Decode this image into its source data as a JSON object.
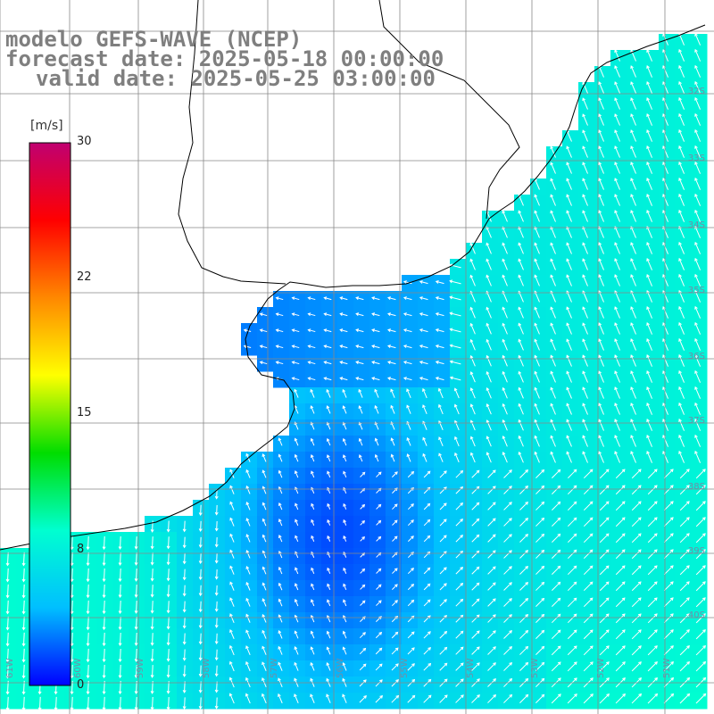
{
  "title": {
    "model": "modelo GEFS-WAVE (NCEP)",
    "forecast": "forecast date: 2025-05-18 00:00:00",
    "valid": "valid date: 2025-05-25 03:00:00"
  },
  "colorbar": {
    "unit": "[m/s]",
    "ticks": [
      "30",
      "22",
      "15",
      "8",
      "0"
    ],
    "colors": [
      "#0000ff",
      "#00bfff",
      "#00ffd0",
      "#00dd00",
      "#ffff00",
      "#ff8800",
      "#ff0000",
      "#c00070"
    ]
  },
  "map": {
    "field": "wind speed and direction",
    "longitude_labels": [
      "61W",
      "60W",
      "59W",
      "58W",
      "57W",
      "56W",
      "55W",
      "54W",
      "53W",
      "52W",
      "51W"
    ],
    "latitude_labels": [
      "32S",
      "33S",
      "34S",
      "35S",
      "36S",
      "37S",
      "38S",
      "39S",
      "40S"
    ],
    "colors": {
      "land": "#ffffff",
      "coast": "#000000",
      "grid": "#888888",
      "arrow": "#ffffff"
    }
  }
}
